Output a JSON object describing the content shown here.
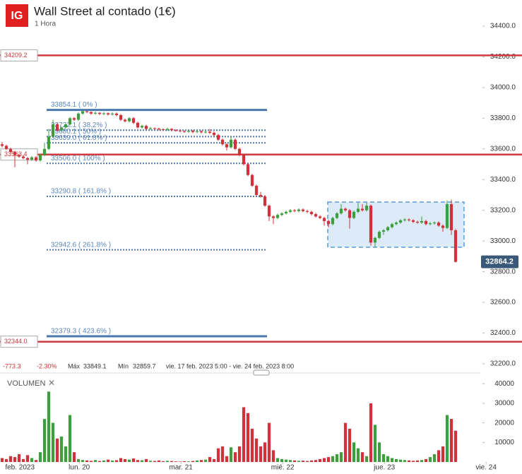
{
  "chart_data": {
    "type": "candlestick",
    "title": "Wall Street al contado (1€)",
    "subtitle": "1 Hora",
    "up_color": "#3c9e3c",
    "down_color": "#d0313a",
    "candles": [
      [
        33630,
        33645,
        33610,
        33620
      ],
      [
        33620,
        33628,
        33592,
        33600
      ],
      [
        33600,
        33608,
        33572,
        33580
      ],
      [
        33580,
        33588,
        33480,
        33560
      ],
      [
        33560,
        33568,
        33542,
        33550
      ],
      [
        33550,
        33558,
        33532,
        33540
      ],
      [
        33540,
        33548,
        33500,
        33530
      ],
      [
        33530,
        33553,
        33522,
        33545
      ],
      [
        33545,
        33553,
        33517,
        33525
      ],
      [
        33525,
        33568,
        33517,
        33560
      ],
      [
        33560,
        33640,
        33552,
        33600
      ],
      [
        33600,
        33730,
        33592,
        33680
      ],
      [
        33680,
        33790,
        33672,
        33760
      ],
      [
        33760,
        33768,
        33712,
        33720
      ],
      [
        33720,
        33748,
        33712,
        33740
      ],
      [
        33740,
        33768,
        33732,
        33760
      ],
      [
        33760,
        33808,
        33752,
        33800
      ],
      [
        33800,
        33808,
        33782,
        33790
      ],
      [
        33790,
        33838,
        33782,
        33830
      ],
      [
        33830,
        33849.1,
        33822,
        33845
      ],
      [
        33845,
        33848,
        33832,
        33840
      ],
      [
        33840,
        33845,
        33822,
        33830
      ],
      [
        33830,
        33843,
        33822,
        33835
      ],
      [
        33835,
        33840,
        33820,
        33828
      ],
      [
        33828,
        33840,
        33820,
        33832
      ],
      [
        33832,
        33838,
        33817,
        33825
      ],
      [
        33825,
        33838,
        33817,
        33830
      ],
      [
        33830,
        33838,
        33812,
        33820
      ],
      [
        33820,
        33828,
        33782,
        33790
      ],
      [
        33790,
        33798,
        33772,
        33780
      ],
      [
        33780,
        33808,
        33772,
        33800
      ],
      [
        33800,
        33808,
        33762,
        33770
      ],
      [
        33770,
        33778,
        33732,
        33740
      ],
      [
        33740,
        33758,
        33732,
        33750
      ],
      [
        33750,
        33758,
        33722,
        33730
      ],
      [
        33730,
        33743,
        33722,
        33735
      ],
      [
        33735,
        33740,
        33724,
        33732
      ],
      [
        33732,
        33738,
        33720,
        33728
      ],
      [
        33728,
        33734,
        33717,
        33725
      ],
      [
        33725,
        33738,
        33717,
        33730
      ],
      [
        33730,
        33736,
        33714,
        33722
      ],
      [
        33722,
        33728,
        33712,
        33720
      ],
      [
        33720,
        33726,
        33707,
        33715
      ],
      [
        33715,
        33722,
        33704,
        33712
      ],
      [
        33712,
        33726,
        33704,
        33718
      ],
      [
        33718,
        33724,
        33702,
        33710
      ],
      [
        33710,
        33723,
        33702,
        33715
      ],
      [
        33715,
        33722,
        33700,
        33708
      ],
      [
        33708,
        33720,
        33700,
        33712
      ],
      [
        33712,
        33730,
        33697,
        33705
      ],
      [
        33705,
        33713,
        33682,
        33690
      ],
      [
        33690,
        33698,
        33652,
        33660
      ],
      [
        33660,
        33668,
        33622,
        33630
      ],
      [
        33630,
        33638,
        33590,
        33610
      ],
      [
        33610,
        33680,
        33602,
        33660
      ],
      [
        33660,
        33668,
        33592,
        33600
      ],
      [
        33600,
        33608,
        33552,
        33560
      ],
      [
        33560,
        33568,
        33492,
        33500
      ],
      [
        33500,
        33508,
        33422,
        33430
      ],
      [
        33430,
        33438,
        33352,
        33360
      ],
      [
        33360,
        33368,
        33292,
        33300
      ],
      [
        33300,
        33320,
        33282,
        33290
      ],
      [
        33290,
        33298,
        33222,
        33230
      ],
      [
        33230,
        33238,
        33130,
        33160
      ],
      [
        33160,
        33168,
        33110,
        33150
      ],
      [
        33150,
        33178,
        33142,
        33170
      ],
      [
        33170,
        33188,
        33162,
        33180
      ],
      [
        33180,
        33198,
        33172,
        33190
      ],
      [
        33190,
        33208,
        33182,
        33200
      ],
      [
        33200,
        33208,
        33187,
        33195
      ],
      [
        33195,
        33213,
        33187,
        33205
      ],
      [
        33205,
        33213,
        33187,
        33195
      ],
      [
        33195,
        33203,
        33182,
        33190
      ],
      [
        33190,
        33198,
        33167,
        33175
      ],
      [
        33175,
        33183,
        33152,
        33160
      ],
      [
        33160,
        33168,
        33142,
        33150
      ],
      [
        33150,
        33158,
        33100,
        33130
      ],
      [
        33130,
        33138,
        33090,
        33110
      ],
      [
        33110,
        33158,
        33102,
        33150
      ],
      [
        33150,
        33188,
        33142,
        33180
      ],
      [
        33180,
        33240,
        33172,
        33210
      ],
      [
        33210,
        33218,
        33192,
        33200
      ],
      [
        33200,
        33208,
        33080,
        33150
      ],
      [
        33150,
        33198,
        33142,
        33190
      ],
      [
        33190,
        33250,
        33182,
        33210
      ],
      [
        33210,
        33240,
        33192,
        33200
      ],
      [
        33200,
        33250,
        33192,
        33230
      ],
      [
        33230,
        33238,
        32970,
        32990
      ],
      [
        32990,
        33028,
        32960,
        33020
      ],
      [
        33020,
        33068,
        33012,
        33060
      ],
      [
        33060,
        33078,
        33040,
        33070
      ],
      [
        33070,
        33098,
        33062,
        33090
      ],
      [
        33090,
        33118,
        33082,
        33110
      ],
      [
        33110,
        33128,
        33102,
        33120
      ],
      [
        33120,
        33143,
        33112,
        33135
      ],
      [
        33135,
        33148,
        33127,
        33140
      ],
      [
        33140,
        33148,
        33127,
        33135
      ],
      [
        33135,
        33143,
        33117,
        33125
      ],
      [
        33125,
        33133,
        33112,
        33120
      ],
      [
        33120,
        33160,
        33112,
        33130
      ],
      [
        33130,
        33138,
        33102,
        33110
      ],
      [
        33110,
        33123,
        33102,
        33115
      ],
      [
        33115,
        33128,
        33107,
        33120
      ],
      [
        33120,
        33128,
        33092,
        33100
      ],
      [
        33100,
        33108,
        33060,
        33085
      ],
      [
        33085,
        33265,
        33077,
        33240
      ],
      [
        33240,
        33270,
        33040,
        33070
      ],
      [
        33070,
        33078,
        32859.7,
        32864.2
      ]
    ],
    "volumes": [
      2000,
      1500,
      3000,
      2500,
      4000,
      1500,
      3500,
      2000,
      1000,
      5000,
      22000,
      36000,
      20000,
      12000,
      13000,
      8000,
      24000,
      5000,
      1500,
      1000,
      800,
      600,
      1000,
      500,
      800,
      1200,
      700,
      900,
      2000,
      1500,
      1200,
      1800,
      1000,
      900,
      1500,
      600,
      500,
      800,
      400,
      600,
      500,
      300,
      200,
      400,
      300,
      500,
      800,
      1000,
      1200,
      2500,
      1500,
      7000,
      8000,
      3000,
      7500,
      5000,
      8000,
      28000,
      25000,
      17000,
      12000,
      8000,
      10000,
      20000,
      6000,
      2000,
      1500,
      1200,
      1000,
      800,
      600,
      700,
      500,
      800,
      1000,
      1500,
      2000,
      2500,
      3000,
      4000,
      5000,
      20000,
      17000,
      10000,
      7000,
      5000,
      3000,
      30000,
      19000,
      10000,
      4000,
      3000,
      2000,
      1500,
      1200,
      1000,
      800,
      600,
      800,
      1000,
      1500,
      2500,
      4000,
      6000,
      8000,
      24000,
      22000,
      16000
    ],
    "xlim": [
      -0.5,
      115
    ],
    "xticks": [
      {
        "value": 4.2,
        "label": "feb. 2023"
      },
      {
        "value": 18.2,
        "label": "lun. 20"
      },
      {
        "value": 42.2,
        "label": "mar. 21"
      },
      {
        "value": 66.2,
        "label": "mié. 22"
      },
      {
        "value": 90.2,
        "label": "jue. 23"
      },
      {
        "value": 114.2,
        "label": "vie. 24"
      }
    ],
    "ylim": [
      32177,
      34570
    ],
    "yticks": [
      {
        "value": 34400,
        "label": "34400.0"
      },
      {
        "value": 34200,
        "label": "34200.0"
      },
      {
        "value": 34000,
        "label": "34000.0"
      },
      {
        "value": 33800,
        "label": "33800.0"
      },
      {
        "value": 33600,
        "label": "33600.0"
      },
      {
        "value": 33400,
        "label": "33400.0"
      },
      {
        "value": 33200,
        "label": "33200.0"
      },
      {
        "value": 33000,
        "label": "33000.0"
      },
      {
        "value": 32800,
        "label": "32800.0"
      },
      {
        "value": 32600,
        "label": "32600.0"
      },
      {
        "value": 32400,
        "label": "32400.0"
      },
      {
        "value": 32200,
        "label": "32200.0"
      }
    ],
    "volume_title": "VOLUMEN",
    "volume_ylim": [
      0,
      43700
    ],
    "volume_yticks": [
      40000,
      30000,
      20000,
      10000
    ],
    "current_price": 32864.2,
    "levels": [
      {
        "value": 34209.2,
        "label": "34209.2"
      },
      {
        "value": 33563.4,
        "label": "33563.4"
      },
      {
        "value": 32344,
        "label": "32344.0"
      }
    ],
    "fib_levels": [
      {
        "value": 33854.1,
        "label": "33854.1 ( 0% )",
        "solid": true
      },
      {
        "value": 33722.1,
        "label": "33722.1 ( 38.2% )",
        "solid": false
      },
      {
        "value": 33680.1,
        "label": "33680.1 ( 50% )",
        "solid": false
      },
      {
        "value": 33639.0,
        "label": "33639.0 ( 61.8% )",
        "solid": false
      },
      {
        "value": 33506.0,
        "label": "33506.0 ( 100% )",
        "solid": false
      },
      {
        "value": 33290.8,
        "label": "33290.8 ( 161.8% )",
        "solid": false
      },
      {
        "value": 32942.6,
        "label": "32942.6 ( 261.8% )",
        "solid": false
      },
      {
        "value": 32379.3,
        "label": "32379.3 ( 423.6% )",
        "solid": true
      }
    ],
    "stats": {
      "change": -773.3,
      "change_pct": "-2.30%",
      "high_label": "Máx",
      "high": 33849.1,
      "low_label": "Mín",
      "low": 32859.7,
      "range": "vie. 17 feb. 2023 5:00 - vie. 24 feb. 2023 8:00"
    }
  }
}
